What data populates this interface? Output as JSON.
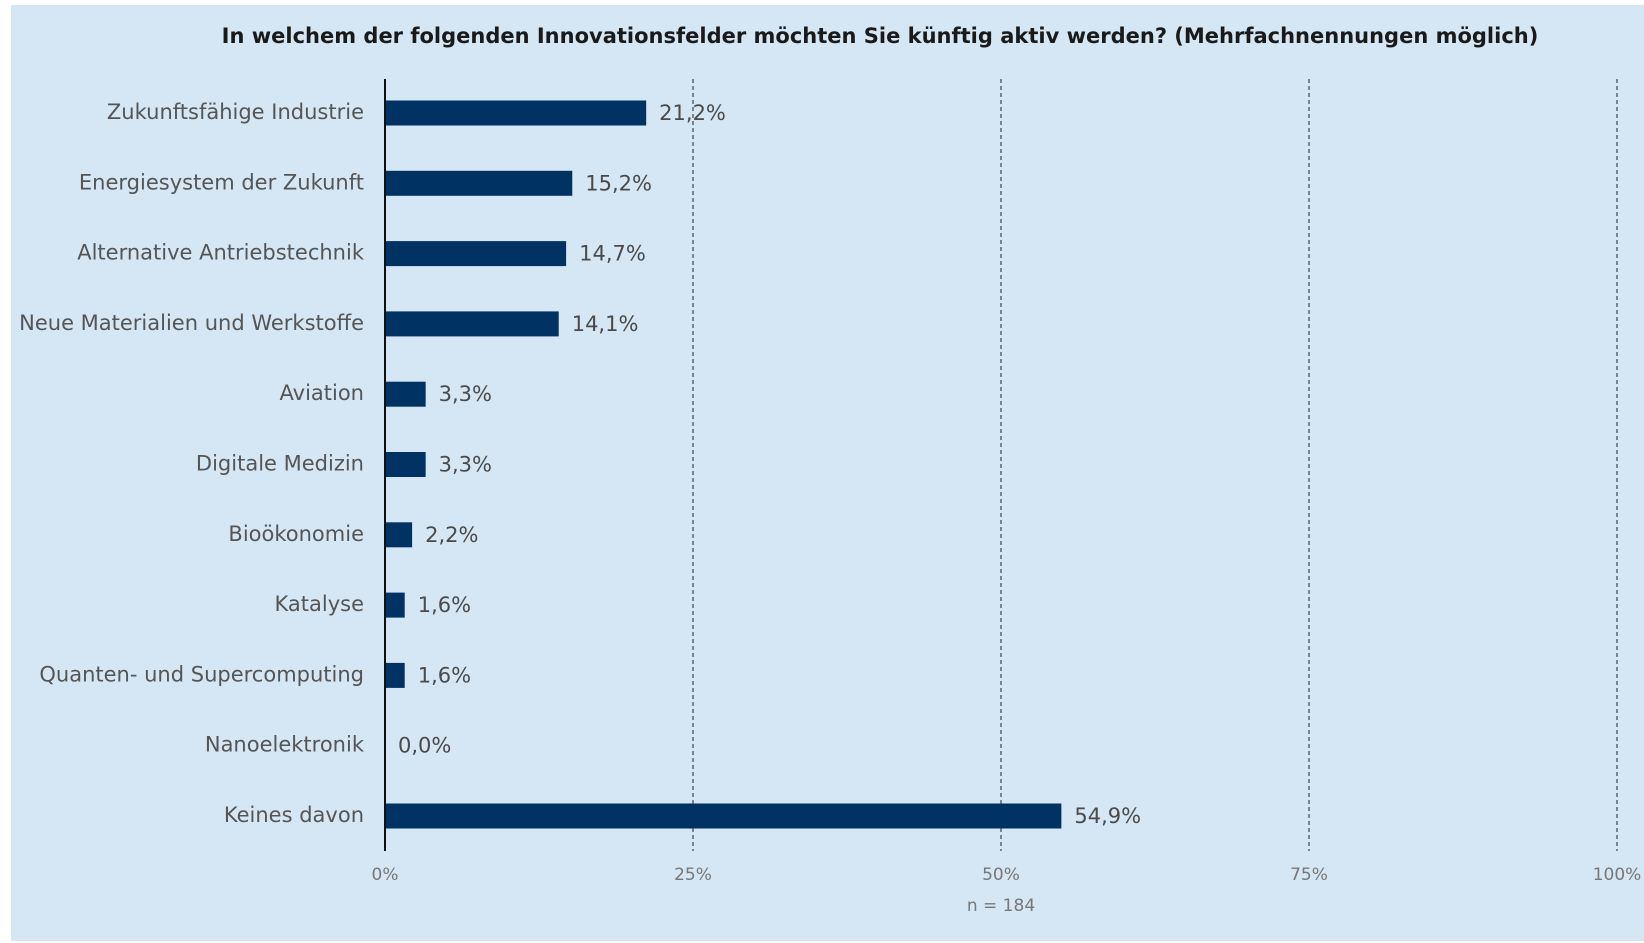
{
  "chart_data": {
    "type": "barh",
    "title": "In welchem der folgenden Innovationsfelder möchten Sie künftig aktiv werden? (Mehrfachnennungen möglich)",
    "categories": [
      "Zukunftsfähige Industrie",
      "Energiesystem der Zukunft",
      "Alternative Antriebstechnik",
      "Neue Materialien und Werkstoffe",
      "Aviation",
      "Digitale Medizin",
      "Bioökonomie",
      "Katalyse",
      "Quanten- und Supercomputing",
      "Nanoelektronik",
      "Keines davon"
    ],
    "values": [
      21.2,
      15.2,
      14.7,
      14.1,
      3.3,
      3.3,
      2.2,
      1.6,
      1.6,
      0.0,
      54.9
    ],
    "value_labels": [
      "21,2%",
      "15,2%",
      "14,7%",
      "14,1%",
      "3,3%",
      "3,3%",
      "2,2%",
      "1,6%",
      "1,6%",
      "0,0%",
      "54,9%"
    ],
    "color": "#003263",
    "xlim": [
      0,
      100
    ],
    "xticks": [
      {
        "value": 0,
        "label": "0%"
      },
      {
        "value": 25,
        "label": "25%"
      },
      {
        "value": 50,
        "label": "50%"
      },
      {
        "value": 75,
        "label": "75%"
      },
      {
        "value": 100,
        "label": "100%"
      }
    ],
    "grid": true,
    "note": "n = 184"
  }
}
